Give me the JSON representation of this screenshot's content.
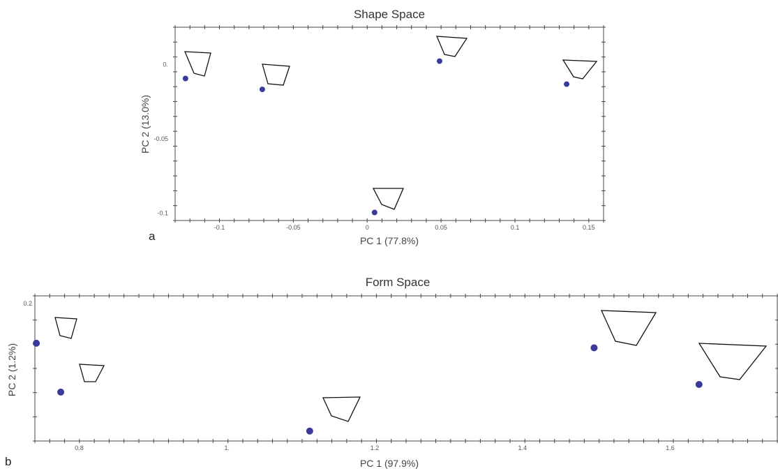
{
  "chart_data": [
    {
      "panel": "a",
      "type": "scatter",
      "title": "Shape Space",
      "xlabel": "PC 1 (77.8%)",
      "ylabel": "PC 2 (13.0%)",
      "xlim": [
        -0.13,
        0.16
      ],
      "ylim": [
        -0.105,
        0.025
      ],
      "xticks": [
        {
          "v": -0.1,
          "label": "-0.1"
        },
        {
          "v": -0.05,
          "label": "-0.05"
        },
        {
          "v": 0,
          "label": "0"
        },
        {
          "v": 0.05,
          "label": "0.05"
        },
        {
          "v": 0.1,
          "label": "0.1"
        },
        {
          "v": 0.15,
          "label": "0.15"
        }
      ],
      "yticks": [
        {
          "v": 0,
          "label": "0."
        },
        {
          "v": -0.05,
          "label": "-0.05"
        },
        {
          "v": -0.1,
          "label": "-0.1"
        }
      ],
      "points": [
        {
          "x": -0.123,
          "y": -0.0095
        },
        {
          "x": -0.071,
          "y": -0.0168
        },
        {
          "x": 0.005,
          "y": -0.0996
        },
        {
          "x": 0.049,
          "y": 0.0022
        },
        {
          "x": 0.135,
          "y": -0.0133
        }
      ]
    },
    {
      "panel": "b",
      "type": "scatter",
      "title": "Form Space",
      "xlabel": "PC 1 (97.9%)",
      "ylabel": "PC 2 (1.2%)",
      "xlim": [
        0.74,
        1.745
      ],
      "ylim": [
        0.02,
        0.21
      ],
      "xticks": [
        {
          "v": 0.8,
          "label": "0.8"
        },
        {
          "v": 1.0,
          "label": "1."
        },
        {
          "v": 1.2,
          "label": "1.2"
        },
        {
          "v": 1.4,
          "label": "1.4"
        },
        {
          "v": 1.6,
          "label": "1.6"
        }
      ],
      "yticks": [
        {
          "v": 0.2,
          "label": "0.2"
        }
      ],
      "points": [
        {
          "x": 0.742,
          "y": 0.148
        },
        {
          "x": 0.775,
          "y": 0.084
        },
        {
          "x": 1.112,
          "y": 0.033
        },
        {
          "x": 1.497,
          "y": 0.142
        },
        {
          "x": 1.639,
          "y": 0.094
        }
      ]
    }
  ]
}
